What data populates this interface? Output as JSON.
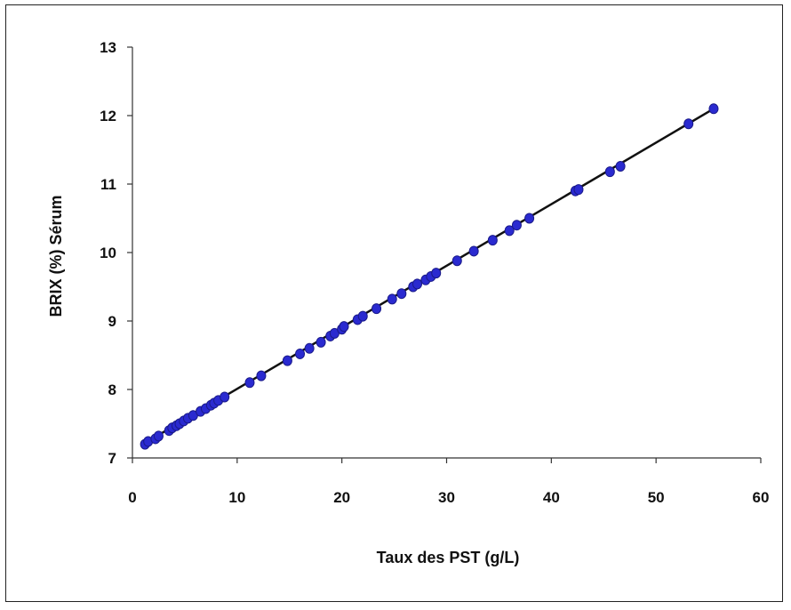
{
  "chart_data": {
    "type": "scatter",
    "title": "",
    "xlabel": "Taux des PST (g/L)",
    "ylabel": "BRIX (%) Sérum",
    "xlim": [
      0,
      60
    ],
    "ylim": [
      7,
      13
    ],
    "x_ticks": [
      0,
      10,
      20,
      30,
      40,
      50,
      60
    ],
    "y_ticks": [
      7,
      8,
      9,
      10,
      11,
      12,
      13
    ],
    "grid": false,
    "legend": "none",
    "colors": {
      "points": "#2a2ad0",
      "point_edge": "#1a1a8a",
      "line": "#111111",
      "axis": "#333333"
    },
    "trendline": {
      "type": "linear",
      "x": [
        1.0,
        55.5
      ],
      "y": [
        7.2,
        12.1
      ]
    },
    "series": [
      {
        "x": [
          1.2,
          1.5,
          2.2,
          2.5,
          3.5,
          3.8,
          4.2,
          4.5,
          4.9,
          5.3,
          5.8,
          6.5,
          7.0,
          7.5,
          7.8,
          8.2,
          8.8,
          11.2,
          12.3,
          14.8,
          16.0,
          16.9,
          18.0,
          18.9,
          19.3,
          20.0,
          20.2,
          21.5,
          22.0,
          23.3,
          24.8,
          25.7,
          26.8,
          27.2,
          28.0,
          28.5,
          29.0,
          31.0,
          32.6,
          34.4,
          36.0,
          36.7,
          37.9,
          42.3,
          42.6,
          45.6,
          46.6,
          53.1,
          55.5
        ],
        "y": [
          7.2,
          7.24,
          7.28,
          7.32,
          7.4,
          7.44,
          7.47,
          7.5,
          7.54,
          7.58,
          7.62,
          7.68,
          7.72,
          7.77,
          7.8,
          7.84,
          7.89,
          8.1,
          8.2,
          8.42,
          8.52,
          8.6,
          8.69,
          8.78,
          8.82,
          8.88,
          8.92,
          9.02,
          9.07,
          9.18,
          9.32,
          9.4,
          9.5,
          9.54,
          9.6,
          9.65,
          9.7,
          9.88,
          10.02,
          10.18,
          10.32,
          10.4,
          10.5,
          10.9,
          10.92,
          11.18,
          11.26,
          11.88,
          12.1
        ]
      }
    ]
  }
}
